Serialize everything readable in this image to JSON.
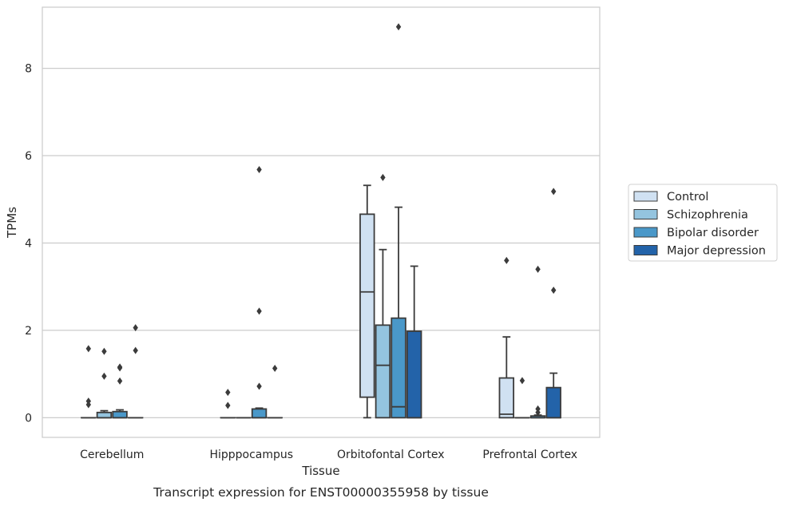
{
  "caption": "Transcript expression for ENST00000355958 by tissue",
  "chart_data": {
    "type": "boxplot",
    "xlabel": "Tissue",
    "ylabel": "TPMs",
    "ylim": [
      -0.45,
      9.4
    ],
    "yticks": [
      0,
      2,
      4,
      6,
      8
    ],
    "grid": "horizontal",
    "legend_position": "right",
    "categories": [
      "Cerebellum",
      "Hipppocampus",
      "Orbitofontal Cortex",
      "Prefrontal Cortex"
    ],
    "series": [
      {
        "name": "Control",
        "color": "#d0e1f2",
        "boxes": [
          {
            "q1": 0,
            "median": 0,
            "q3": 0,
            "whisker_low": 0,
            "whisker_high": 0,
            "outliers": [
              1.58,
              0.38,
              0.3
            ]
          },
          {
            "q1": 0,
            "median": 0,
            "q3": 0,
            "whisker_low": 0,
            "whisker_high": 0,
            "outliers": [
              0.58,
              0.28
            ]
          },
          {
            "q1": 0.47,
            "median": 2.88,
            "q3": 4.66,
            "whisker_low": 0,
            "whisker_high": 5.32,
            "outliers": []
          },
          {
            "q1": 0,
            "median": 0.08,
            "q3": 0.91,
            "whisker_low": 0,
            "whisker_high": 1.85,
            "outliers": [
              3.6
            ]
          }
        ]
      },
      {
        "name": "Schizophrenia",
        "color": "#94c4df",
        "boxes": [
          {
            "q1": 0,
            "median": 0,
            "q3": 0.12,
            "whisker_low": 0,
            "whisker_high": 0.16,
            "outliers": [
              1.52,
              0.95
            ]
          },
          {
            "q1": 0,
            "median": 0,
            "q3": 0,
            "whisker_low": 0,
            "whisker_high": 0,
            "outliers": []
          },
          {
            "q1": 0,
            "median": 1.2,
            "q3": 2.12,
            "whisker_low": 0,
            "whisker_high": 3.85,
            "outliers": [
              5.5
            ]
          },
          {
            "q1": 0,
            "median": 0,
            "q3": 0,
            "whisker_low": 0,
            "whisker_high": 0,
            "outliers": [
              0.85
            ]
          }
        ]
      },
      {
        "name": "Bipolar disorder",
        "color": "#4a98c9",
        "boxes": [
          {
            "q1": 0,
            "median": 0,
            "q3": 0.14,
            "whisker_low": 0,
            "whisker_high": 0.18,
            "outliers": [
              1.16,
              1.14,
              0.84
            ]
          },
          {
            "q1": 0,
            "median": 0,
            "q3": 0.2,
            "whisker_low": 0,
            "whisker_high": 0.22,
            "outliers": [
              5.68,
              2.44,
              0.72
            ]
          },
          {
            "q1": 0,
            "median": 0.25,
            "q3": 2.28,
            "whisker_low": 0,
            "whisker_high": 4.82,
            "outliers": [
              8.95
            ]
          },
          {
            "q1": 0,
            "median": 0,
            "q3": 0.04,
            "whisker_low": 0,
            "whisker_high": 0.06,
            "outliers": [
              3.4,
              0.2,
              0.12
            ]
          }
        ]
      },
      {
        "name": "Major depression",
        "color": "#2363a9",
        "boxes": [
          {
            "q1": 0,
            "median": 0,
            "q3": 0,
            "whisker_low": 0,
            "whisker_high": 0,
            "outliers": [
              2.06,
              1.54
            ]
          },
          {
            "q1": 0,
            "median": 0,
            "q3": 0,
            "whisker_low": 0,
            "whisker_high": 0,
            "outliers": [
              1.13
            ]
          },
          {
            "q1": 0,
            "median": 0,
            "q3": 1.98,
            "whisker_low": 0,
            "whisker_high": 3.47,
            "outliers": []
          },
          {
            "q1": 0,
            "median": 0,
            "q3": 0.69,
            "whisker_low": 0,
            "whisker_high": 1.02,
            "outliers": [
              2.92,
              5.18
            ]
          }
        ]
      }
    ]
  }
}
